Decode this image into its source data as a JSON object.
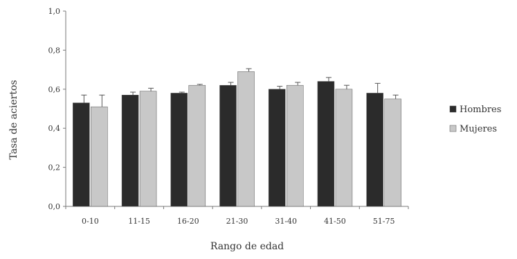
{
  "chart_data": {
    "type": "bar",
    "title": "",
    "xlabel": "Rango de edad",
    "ylabel": "Tasa de aciertos",
    "ylim": [
      0,
      1
    ],
    "yticks": [
      "0,0",
      "0,2",
      "0,4",
      "0,6",
      "0,8",
      "1,0"
    ],
    "categories": [
      "0-10",
      "11-15",
      "16-20",
      "21-30",
      "31-40",
      "41-50",
      "51-75"
    ],
    "series": [
      {
        "name": "Hombres",
        "color": "#2b2b2b",
        "values": [
          0.53,
          0.57,
          0.58,
          0.62,
          0.6,
          0.64,
          0.58
        ],
        "errors": [
          0.04,
          0.015,
          0.005,
          0.015,
          0.015,
          0.02,
          0.05
        ]
      },
      {
        "name": "Mujeres",
        "color": "#c8c8c8",
        "values": [
          0.51,
          0.59,
          0.62,
          0.69,
          0.62,
          0.6,
          0.55
        ],
        "errors": [
          0.06,
          0.015,
          0.005,
          0.015,
          0.015,
          0.02,
          0.02
        ]
      }
    ],
    "legend": "right",
    "grid": false
  }
}
